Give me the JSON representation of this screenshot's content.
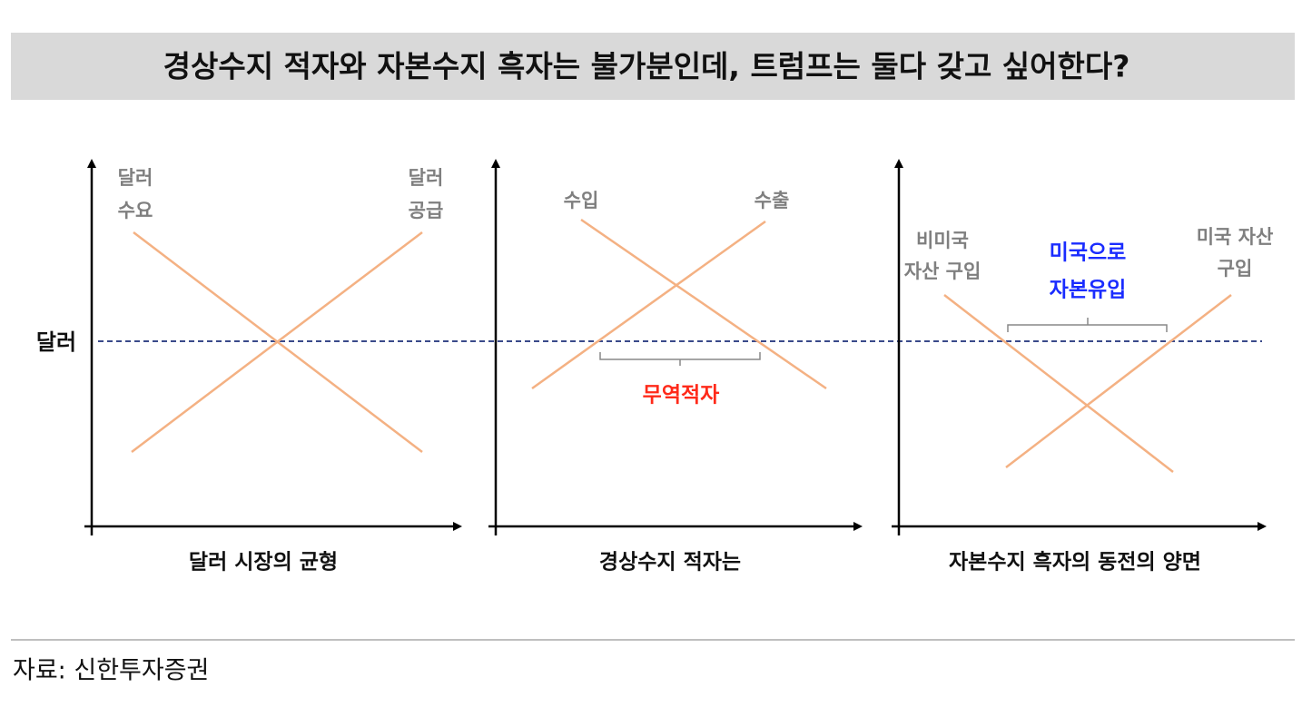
{
  "header": {
    "title": "경상수지 적자와 자본수지 흑자는 불가분인데, 트럼프는 둘다 갖고 싶어한다?"
  },
  "y_axis_label": "달러",
  "panels": [
    {
      "caption": "달러 시장의 균형",
      "left_label": [
        "달러",
        "수요"
      ],
      "right_label": [
        "달러",
        "공급"
      ]
    },
    {
      "caption": "경상수지 적자는",
      "left_label": [
        "수입"
      ],
      "right_label": [
        "수출"
      ],
      "annotation": [
        "무역적자"
      ]
    },
    {
      "caption": "자본수지 흑자의 동전의 양면",
      "left_label": [
        "비미국",
        "자산 구입"
      ],
      "right_label": [
        "미국 자산",
        "구입"
      ],
      "annotation": [
        "미국으로",
        "자본유입"
      ]
    }
  ],
  "source": "자료: 신한투자증권"
}
